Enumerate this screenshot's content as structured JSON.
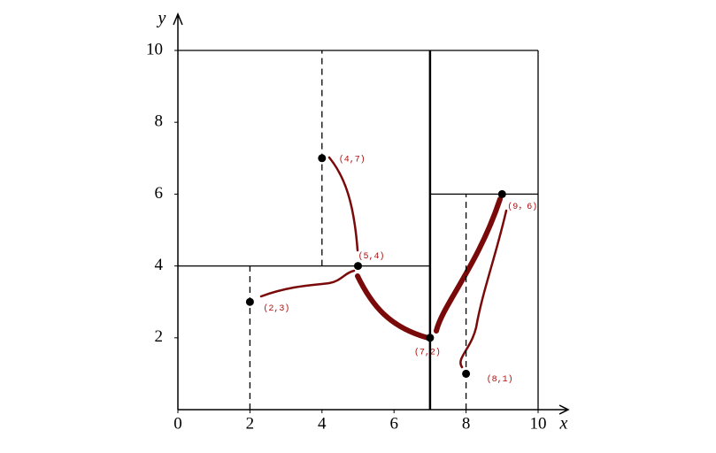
{
  "chart_data": {
    "type": "scatter",
    "x_label": "x",
    "y_label": "y",
    "x": [
      2,
      5,
      9,
      4,
      8,
      7
    ],
    "values": [
      3,
      4,
      6,
      7,
      1,
      2
    ],
    "value_labels": [
      "(2,3)",
      "(5,4)",
      "(9，6)",
      "(4,7)",
      "(8,1)",
      "(7,2)"
    ],
    "color": "#000000",
    "label_color": "#b01010",
    "xlim": [
      0,
      10
    ],
    "ylim": [
      0,
      10
    ],
    "xticks": [
      0,
      2,
      4,
      6,
      8,
      10
    ],
    "yticks": [
      2,
      4,
      6,
      8,
      10
    ]
  }
}
